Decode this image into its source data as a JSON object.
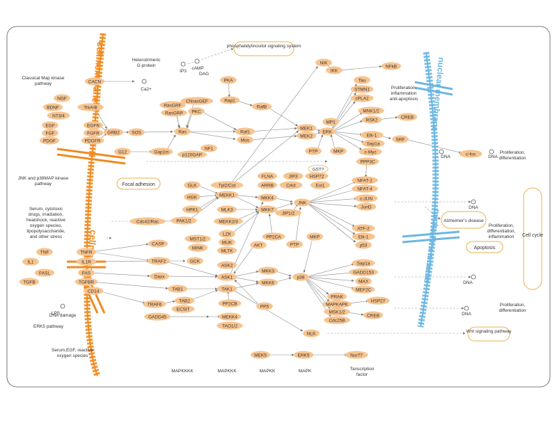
{
  "colors": {
    "node_fill": "#f7c48f",
    "cell_membrane": "#f08a1e",
    "nuclear_membrane": "#6cb6e0",
    "box_border": "#e8b04a",
    "line": "#777777",
    "frame": "#555555"
  },
  "membranes": {
    "cell_label": "cellmembrane",
    "nuclear_label": "nuclear membrane"
  },
  "tier_labels": [
    "MAPKKKK",
    "MAPKKK",
    "MAPKK",
    "MAPK",
    "Tanscription factor"
  ],
  "pathway_labels": [
    "Classical Map kinase pathway",
    "JNK and p38MAP kinase pathway",
    "ERK5 pathway"
  ],
  "stimuli": [
    "Heterotrimeric G-protein",
    "Serum, cytotoxic drugs, irradiation, heatshock, reactive oxygen species, lipopolysaccharide, and other stress",
    "DNA damage",
    "Serum,EGF, reactive oxygen species",
    "LPS"
  ],
  "boxes": [
    "phosphatidylinositol signaling system",
    "Focal adhesion",
    "Alzheimer's disease",
    "Apoptosis",
    "Wnt signaling pathway",
    "Cell cycle"
  ],
  "outcomes": [
    "Proliferation, inflammation anti-apoptosis",
    "Proliferation, differentiation",
    "Proliferation, differentiation, inflammation",
    "Proliferation, differentiation"
  ],
  "misc": [
    "IP3",
    "cAMP",
    "DAG",
    "Ca2+",
    "DNA"
  ],
  "node_labels": {
    "NGF": "NGF",
    "BDNF": "BDNF",
    "NT34": "NT3/4",
    "EGF": "EGF",
    "FGF": "FGF",
    "PDGF": "PDGF",
    "CACN": "CACN",
    "TrkAB": "TrkA/B",
    "EGFR": "EGFR",
    "FGFR": "FGFR",
    "PDGFR": "PDGFR",
    "GRB2": "GRB2",
    "SOS": "SOS",
    "G12": "G12",
    "Gap1m": "Gap1m",
    "p120GAP": "p120GAP",
    "NF1": "NF1",
    "RasGRF": "RasGRF",
    "RasGRP": "RasGRP",
    "CNrasGEF": "CNrasGEF",
    "PKC": "PKC",
    "PKA": "PKA",
    "Rap1": "Rap1",
    "RafB": "RafB",
    "Ras": "Ras",
    "Raf1": "Raf1",
    "Mos": "Mos",
    "MEK1": "MEK1",
    "MEK2": "MEK2",
    "MP1": "MP1",
    "ERK": "ERK",
    "PTP1": "PTP",
    "MKP1": "MKP",
    "PPP3C": "PPP3C",
    "NIK": "NIK",
    "IKK": "IKK",
    "NFkB": "NFkB",
    "Tau": "Tau",
    "STMN1": "STMN1",
    "cPLA2": "cPLA2",
    "MNK12": "MNK1/2",
    "RSK2": "RSK2",
    "CREB1": "CREB",
    "Elk1a": "Elk-1",
    "Sap1a1": "Sap1a",
    "cMyc": "c-Myc",
    "SRF": "SRF",
    "cfos": "c-fos",
    "GST": "GST?",
    "TNF": "TNF",
    "IL1": "IL1",
    "FASL": "FASL",
    "TGFB": "TGFB",
    "TNFR": "TNFR",
    "IL1R": "IL1R",
    "FAS": "FAS",
    "TGFBR": "TGFBR",
    "CD14": "CD14",
    "Cdc42Rac": "Cdc42/Rac",
    "CASP": "CASP",
    "TRAF2": "TRAF2",
    "Daxx": "Daxx",
    "TRAF6": "TRAF6",
    "GADD45": "GADD45",
    "TAB1": "TAB1",
    "TAB2": "TAB2",
    "ECSIT": "ECSIT",
    "GLK": "GLK",
    "HGK": "HGK",
    "HPK1": "HPK1",
    "PAK12": "PAK1/2",
    "MST12": "MST1/2",
    "MINK": "MINK",
    "GCK": "GCK",
    "Tpl2Cot": "Tpl2/Cot",
    "MEKK1": "MEKK1",
    "MLK3": "MLK3",
    "MEKK23": "MEKK2/3",
    "LZK": "LZK",
    "MUK": "MUK",
    "MLTK": "MLTK",
    "ASK2": "ASK2",
    "ASK1": "ASK1",
    "TAK1": "TAK1",
    "PP2CB": "PP2CB",
    "MEKK4": "MEKK4",
    "TAO12": "TAO1/2",
    "FLNA": "FLNA",
    "ARRB": "ARRB",
    "JIP3": "JIP3",
    "CrkII": "CrkII",
    "HSP72": "HSP72",
    "Evi1": "Evi1",
    "MKK4": "MKK4",
    "MKK7": "MKK7",
    "JIP12": "JIP1/2",
    "JNK": "JNK",
    "AKT": "AKT",
    "PP2CA": "PP2CA",
    "PTP2": "PTP",
    "MKP2": "MKP",
    "MKK3": "MKK3",
    "MKK6": "MKK6",
    "p38": "p38",
    "PP5": "PP5",
    "NFAT2": "NFAT-2",
    "NFAT4": "NFAT-4",
    "cJUN": "c-JUN",
    "JunD": "JunD",
    "ATF2": "ATF-2",
    "Elk1b": "Elk-1",
    "p53": "p53",
    "Sap1a2": "Sap1a",
    "GADD153": "GADD153",
    "MAX": "MAX",
    "MEF2C": "MEF2C",
    "PRAK": "PRAK",
    "MAPKAPK": "MAPKAPK",
    "MSK12": "MSK1/2",
    "Cdc25B": "Cdc25B",
    "HSP27": "HSP27",
    "CREB2": "CREB",
    "NLK": "NLK",
    "MEK5": "MEK5",
    "ERK5": "ERK5",
    "Nur77": "Nur77"
  }
}
